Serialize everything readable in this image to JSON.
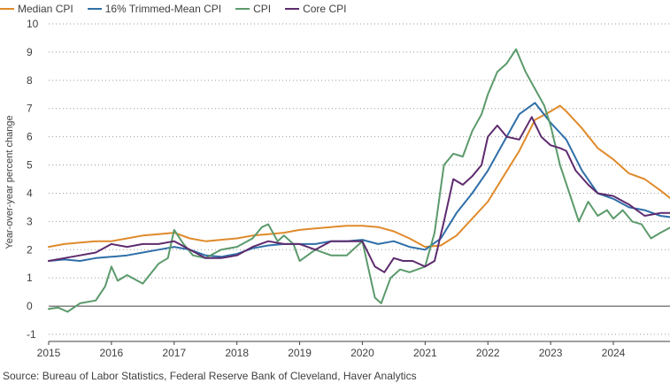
{
  "chart_data": {
    "type": "line",
    "title": "",
    "xlabel": "",
    "ylabel": "Year-over-year percent change",
    "ylim": [
      -1,
      10
    ],
    "xlim": [
      2015.0,
      2025.0
    ],
    "yticks": [
      "-1",
      "0",
      "1",
      "2",
      "3",
      "4",
      "5",
      "6",
      "7",
      "8",
      "9",
      "10"
    ],
    "xticks": [
      "2015",
      "2016",
      "2017",
      "2018",
      "2019",
      "2020",
      "2021",
      "2022",
      "2023",
      "2024"
    ],
    "grid": "horizontal dotted",
    "legend_position": "top-left",
    "series": [
      {
        "name": "Median CPI",
        "color": "#E08A2B",
        "x": [
          2015.0,
          2015.25,
          2015.5,
          2015.75,
          2016.0,
          2016.25,
          2016.5,
          2016.75,
          2017.0,
          2017.25,
          2017.5,
          2017.75,
          2018.0,
          2018.25,
          2018.5,
          2018.75,
          2019.0,
          2019.25,
          2019.5,
          2019.75,
          2020.0,
          2020.25,
          2020.5,
          2020.75,
          2021.0,
          2021.25,
          2021.5,
          2021.75,
          2022.0,
          2022.25,
          2022.5,
          2022.75,
          2023.0,
          2023.15,
          2023.25,
          2023.5,
          2023.75,
          2024.0,
          2024.25,
          2024.5,
          2024.75,
          2024.92
        ],
        "y": [
          2.1,
          2.2,
          2.25,
          2.3,
          2.3,
          2.4,
          2.5,
          2.55,
          2.6,
          2.4,
          2.3,
          2.35,
          2.4,
          2.5,
          2.55,
          2.6,
          2.7,
          2.75,
          2.8,
          2.85,
          2.85,
          2.8,
          2.65,
          2.4,
          2.1,
          2.15,
          2.5,
          3.1,
          3.7,
          4.6,
          5.5,
          6.6,
          6.9,
          7.1,
          6.9,
          6.3,
          5.6,
          5.2,
          4.7,
          4.5,
          4.1,
          3.8
        ]
      },
      {
        "name": "16% Trimmed-Mean CPI",
        "color": "#2F6FA8",
        "x": [
          2015.0,
          2015.25,
          2015.5,
          2015.75,
          2016.0,
          2016.25,
          2016.5,
          2016.75,
          2017.0,
          2017.25,
          2017.5,
          2017.75,
          2018.0,
          2018.25,
          2018.5,
          2018.75,
          2019.0,
          2019.25,
          2019.5,
          2019.75,
          2020.0,
          2020.25,
          2020.5,
          2020.75,
          2021.0,
          2021.25,
          2021.5,
          2021.75,
          2022.0,
          2022.25,
          2022.5,
          2022.75,
          2023.0,
          2023.25,
          2023.5,
          2023.75,
          2024.0,
          2024.25,
          2024.5,
          2024.75,
          2024.92
        ],
        "y": [
          1.6,
          1.65,
          1.6,
          1.7,
          1.75,
          1.8,
          1.9,
          2.0,
          2.1,
          2.0,
          1.8,
          1.75,
          1.85,
          2.05,
          2.15,
          2.2,
          2.2,
          2.2,
          2.3,
          2.3,
          2.35,
          2.2,
          2.3,
          2.1,
          2.0,
          2.4,
          3.3,
          4.0,
          4.8,
          5.8,
          6.8,
          7.2,
          6.5,
          5.9,
          4.8,
          4.0,
          3.8,
          3.5,
          3.4,
          3.2,
          3.15
        ]
      },
      {
        "name": "CPI",
        "color": "#5B9A6B",
        "x": [
          2015.0,
          2015.15,
          2015.3,
          2015.5,
          2015.75,
          2015.9,
          2016.0,
          2016.1,
          2016.25,
          2016.5,
          2016.75,
          2016.9,
          2017.0,
          2017.15,
          2017.3,
          2017.5,
          2017.75,
          2018.0,
          2018.25,
          2018.4,
          2018.5,
          2018.65,
          2018.75,
          2018.9,
          2019.0,
          2019.25,
          2019.5,
          2019.75,
          2020.0,
          2020.2,
          2020.3,
          2020.45,
          2020.6,
          2020.75,
          2021.0,
          2021.15,
          2021.3,
          2021.45,
          2021.6,
          2021.75,
          2021.9,
          2022.0,
          2022.15,
          2022.3,
          2022.45,
          2022.6,
          2022.75,
          2022.9,
          2023.0,
          2023.15,
          2023.3,
          2023.45,
          2023.6,
          2023.75,
          2023.9,
          2024.0,
          2024.15,
          2024.3,
          2024.45,
          2024.6,
          2024.75,
          2024.92
        ],
        "y": [
          -0.1,
          -0.05,
          -0.2,
          0.1,
          0.2,
          0.7,
          1.4,
          0.9,
          1.1,
          0.8,
          1.5,
          1.7,
          2.7,
          2.2,
          1.8,
          1.7,
          2.0,
          2.1,
          2.4,
          2.8,
          2.9,
          2.3,
          2.5,
          2.2,
          1.6,
          2.0,
          1.8,
          1.8,
          2.3,
          0.3,
          0.1,
          1.0,
          1.3,
          1.2,
          1.4,
          2.6,
          5.0,
          5.4,
          5.3,
          6.2,
          6.8,
          7.5,
          8.3,
          8.6,
          9.1,
          8.3,
          7.7,
          7.1,
          6.4,
          5.0,
          4.0,
          3.0,
          3.7,
          3.2,
          3.4,
          3.1,
          3.4,
          3.0,
          2.9,
          2.4,
          2.6,
          2.8
        ]
      },
      {
        "name": "Core CPI",
        "color": "#5E2B6E",
        "x": [
          2015.0,
          2015.25,
          2015.5,
          2015.75,
          2016.0,
          2016.25,
          2016.5,
          2016.75,
          2017.0,
          2017.25,
          2017.5,
          2017.75,
          2018.0,
          2018.25,
          2018.5,
          2018.75,
          2019.0,
          2019.25,
          2019.5,
          2019.75,
          2020.0,
          2020.2,
          2020.35,
          2020.5,
          2020.65,
          2020.8,
          2021.0,
          2021.15,
          2021.3,
          2021.45,
          2021.6,
          2021.75,
          2021.9,
          2022.0,
          2022.15,
          2022.3,
          2022.5,
          2022.7,
          2022.85,
          2023.0,
          2023.15,
          2023.25,
          2023.4,
          2023.6,
          2023.75,
          2024.0,
          2024.25,
          2024.5,
          2024.75,
          2024.92
        ],
        "y": [
          1.6,
          1.7,
          1.8,
          1.9,
          2.2,
          2.1,
          2.2,
          2.2,
          2.3,
          2.0,
          1.7,
          1.7,
          1.8,
          2.1,
          2.3,
          2.2,
          2.2,
          2.0,
          2.3,
          2.3,
          2.3,
          1.4,
          1.2,
          1.7,
          1.6,
          1.6,
          1.4,
          1.6,
          3.0,
          4.5,
          4.3,
          4.6,
          5.0,
          6.0,
          6.4,
          6.0,
          5.9,
          6.7,
          6.0,
          5.7,
          5.6,
          5.5,
          4.8,
          4.3,
          4.0,
          3.9,
          3.6,
          3.2,
          3.3,
          3.3
        ]
      }
    ],
    "source": "Source: Bureau of Labor Statistics, Federal Reserve Bank of Cleveland, Haver Analytics"
  }
}
